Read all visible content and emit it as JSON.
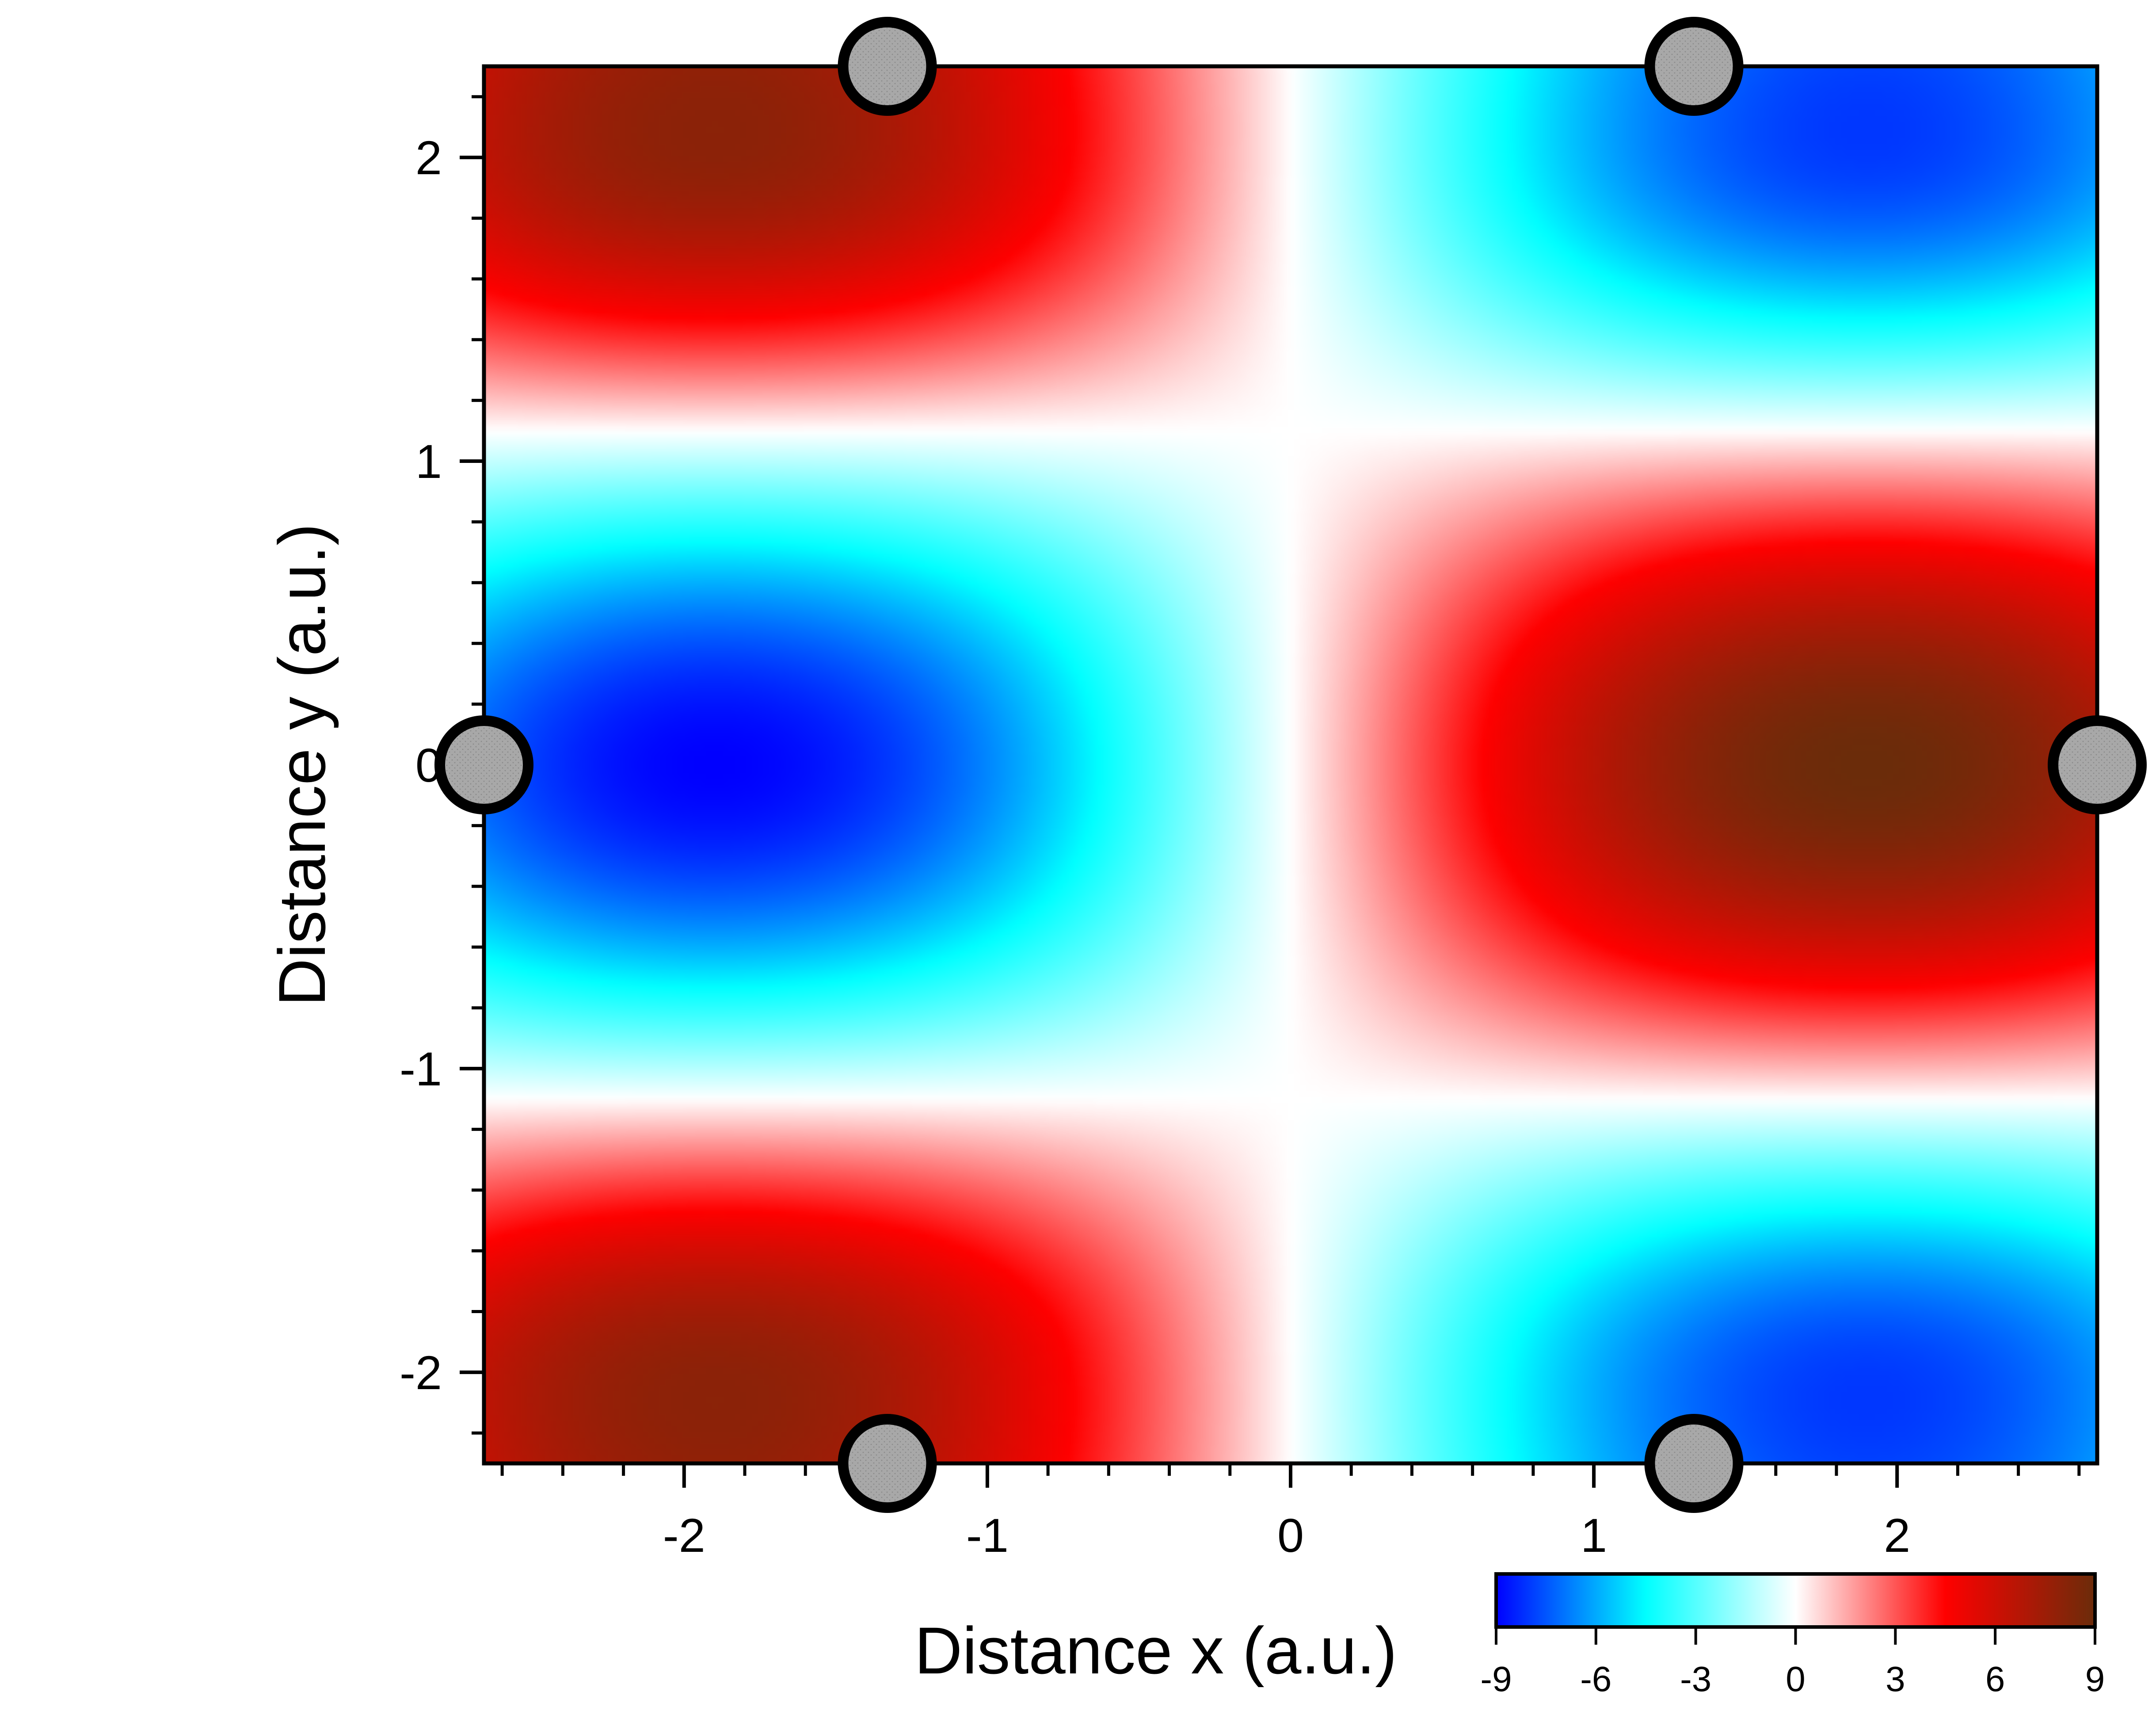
{
  "chart_data": {
    "type": "heatmap",
    "title": "",
    "xlabel": "Distance x (a.u.)",
    "ylabel": "Distance y (a.u.)",
    "xlim": [
      -2.66,
      2.66
    ],
    "ylim": [
      -2.3,
      2.3
    ],
    "x_ticks": [
      -2,
      -1,
      0,
      1,
      2
    ],
    "x_tick_labels": [
      "-2",
      "-1",
      "0",
      "1",
      "2"
    ],
    "y_ticks": [
      2,
      1,
      0,
      -1,
      -2
    ],
    "y_tick_labels": [
      "2",
      "1",
      "0",
      "-1",
      "-2"
    ],
    "colorbar": {
      "range": [
        -9,
        9
      ],
      "ticks": [
        -9,
        -6,
        -3,
        0,
        3,
        6,
        9
      ],
      "tick_labels": [
        "-9",
        "-6",
        "-3",
        "0",
        "3",
        "6",
        "9"
      ],
      "colors": [
        {
          "value": -9,
          "color": "#0000ff"
        },
        {
          "value": -4.5,
          "color": "#00ffff"
        },
        {
          "value": 0,
          "color": "#ffffff"
        },
        {
          "value": 4.5,
          "color": "#ff0000"
        },
        {
          "value": 9,
          "color": "#6b2c0a"
        }
      ]
    },
    "field": {
      "extrema": [
        {
          "x": 1.9,
          "y": 0.0,
          "value": 9,
          "kind": "max"
        },
        {
          "x": -1.9,
          "y": 0.0,
          "value": -8,
          "kind": "min"
        },
        {
          "x": -2.1,
          "y": 2.15,
          "value": 8,
          "kind": "max"
        },
        {
          "x": -2.1,
          "y": -2.15,
          "value": 8,
          "kind": "max"
        },
        {
          "x": 2.0,
          "y": 2.15,
          "value": -8,
          "kind": "min"
        },
        {
          "x": 2.0,
          "y": -2.15,
          "value": -8,
          "kind": "min"
        }
      ],
      "zero_lines": [
        "x = 0",
        "y ≈ ±1.1"
      ]
    },
    "atoms": [
      {
        "x": -1.33,
        "y": 2.3
      },
      {
        "x": 1.33,
        "y": 2.3
      },
      {
        "x": -2.66,
        "y": 0
      },
      {
        "x": 2.66,
        "y": 0
      },
      {
        "x": -1.33,
        "y": -2.3
      },
      {
        "x": 1.33,
        "y": -2.3
      }
    ],
    "atom_style": {
      "fill": "#a8a8a8",
      "stroke": "#000000"
    },
    "grid": false,
    "legend": "colorbar bottom-right"
  }
}
